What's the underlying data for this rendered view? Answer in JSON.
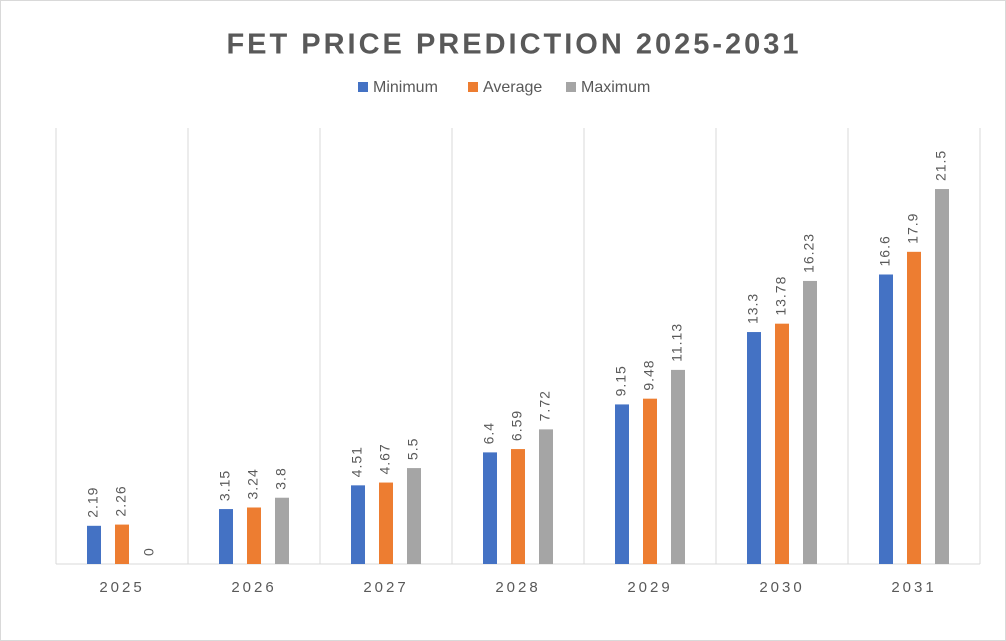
{
  "chart_data": {
    "type": "bar",
    "title": "FET PRICE PREDICTION 2025-2031",
    "categories": [
      "2025",
      "2026",
      "2027",
      "2028",
      "2029",
      "2030",
      "2031"
    ],
    "series": [
      {
        "name": "Minimum",
        "color": "#4472c4",
        "values": [
          2.19,
          3.15,
          4.51,
          6.4,
          9.15,
          13.3,
          16.6
        ]
      },
      {
        "name": "Average",
        "color": "#ed7d31",
        "values": [
          2.26,
          3.24,
          4.67,
          6.59,
          9.48,
          13.78,
          17.9
        ]
      },
      {
        "name": "Maximum",
        "color": "#a5a5a5",
        "values": [
          0,
          3.8,
          5.5,
          7.72,
          11.13,
          16.23,
          21.5
        ]
      }
    ],
    "ylim": [
      0,
      25
    ],
    "legend": "top",
    "grid": true
  }
}
